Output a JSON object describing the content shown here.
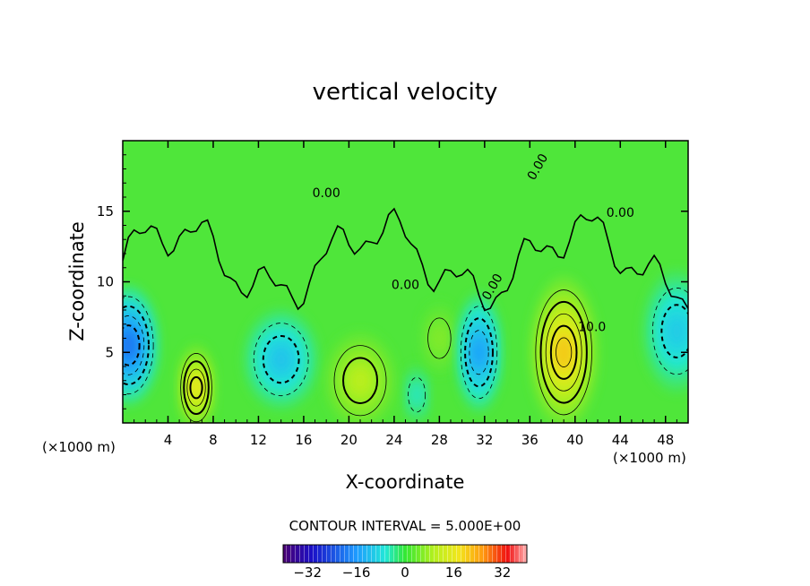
{
  "chart_data": {
    "type": "heatmap",
    "title": "vertical velocity",
    "xlabel": "X-coordinate",
    "ylabel": "Z-coordinate",
    "x_unit_left": "(×1000 m)",
    "x_unit_right": "(×1000 m)",
    "xlim": [
      0,
      50
    ],
    "ylim": [
      0,
      20
    ],
    "x_ticks": [
      4,
      8,
      12,
      16,
      20,
      24,
      28,
      32,
      36,
      40,
      44,
      48
    ],
    "y_ticks": [
      5,
      10,
      15
    ],
    "contour_interval_text": "CONTOUR INTERVAL = 5.000E+00",
    "contour_interval": 5,
    "contour_labels": [
      "0.00",
      "0.00",
      "0.00",
      "0.00",
      "0.00",
      "10.0"
    ],
    "colorbar": {
      "range": [
        -40,
        40
      ],
      "ticks": [
        "-32",
        "-16",
        "0",
        "16",
        "32"
      ],
      "colormap": "rainbow"
    },
    "features": [
      {
        "x": 0.5,
        "z": 5.5,
        "value": -24
      },
      {
        "x": 6.5,
        "z": 2.5,
        "value": 20
      },
      {
        "x": 14,
        "z": 4.5,
        "value": -13
      },
      {
        "x": 21,
        "z": 3.0,
        "value": 13
      },
      {
        "x": 26,
        "z": 2.0,
        "value": -6
      },
      {
        "x": 28,
        "z": 6.0,
        "value": 6
      },
      {
        "x": 31.5,
        "z": 5.0,
        "value": -18
      },
      {
        "x": 39,
        "z": 5.0,
        "value": 25
      },
      {
        "x": 49,
        "z": 6.5,
        "value": -12
      }
    ]
  }
}
